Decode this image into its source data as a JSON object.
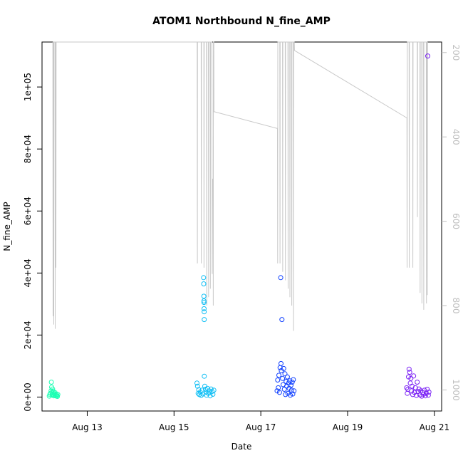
{
  "chart_data": {
    "type": "scatter",
    "title": "ATOM1 Northbound N_fine_AMP",
    "xlabel": "Date",
    "ylabel": "N_fine_AMP",
    "y2label": "",
    "x_ticks": [
      "Aug 13",
      "Aug 15",
      "Aug 17",
      "Aug 19",
      "Aug 21"
    ],
    "y_ticks": [
      "0e+00",
      "2e+04",
      "4e+04",
      "6e+04",
      "8e+04",
      "1e+05"
    ],
    "y2_ticks": [
      "200",
      "400",
      "600",
      "800",
      "1000"
    ],
    "x_range": [
      "2016-08-11 23:00",
      "2016-08-21 04:00"
    ],
    "y_range": [
      -4500,
      114500
    ],
    "y2_range_reversed": [
      1050,
      175
    ],
    "grid": false,
    "legend": "none",
    "colors": {
      "depth_line": "#c8c8c8",
      "right_axis": "#bfbfbf",
      "cluster_1": "#1effb4",
      "cluster_2": "#10bff5",
      "cluster_3": "#1040ff",
      "cluster_4": "#7a20f5"
    },
    "series": [
      {
        "role": "depth",
        "axis": "right",
        "points": [
          [
            "2016-08-12 05:00",
            175
          ],
          [
            "2016-08-12 05:06",
            825
          ],
          [
            "2016-08-12 05:12",
            175
          ],
          [
            "2016-08-12 05:24",
            175
          ],
          [
            "2016-08-12 05:30",
            845
          ],
          [
            "2016-08-12 05:36",
            175
          ],
          [
            "2016-08-12 06:12",
            175
          ],
          [
            "2016-08-12 06:18",
            855
          ],
          [
            "2016-08-12 06:24",
            175
          ],
          [
            "2016-08-12 06:36",
            175
          ],
          [
            "2016-08-12 06:42",
            710
          ],
          [
            "2016-08-12 06:48",
            175
          ],
          [
            "2016-08-15 12:48",
            175
          ],
          [
            "2016-08-15 12:54",
            700
          ],
          [
            "2016-08-15 13:00",
            175
          ],
          [
            "2016-08-15 15:00",
            175
          ],
          [
            "2016-08-15 15:06",
            700
          ],
          [
            "2016-08-15 15:12",
            175
          ],
          [
            "2016-08-15 16:30",
            175
          ],
          [
            "2016-08-15 16:36",
            710
          ],
          [
            "2016-08-15 16:42",
            175
          ],
          [
            "2016-08-15 18:00",
            175
          ],
          [
            "2016-08-15 18:06",
            800
          ],
          [
            "2016-08-15 18:12",
            175
          ],
          [
            "2016-08-15 19:00",
            175
          ],
          [
            "2016-08-15 19:06",
            780
          ],
          [
            "2016-08-15 19:12",
            175
          ],
          [
            "2016-08-15 20:00",
            175
          ],
          [
            "2016-08-15 20:06",
            760
          ],
          [
            "2016-08-15 20:12",
            175
          ],
          [
            "2016-08-15 21:00",
            175
          ],
          [
            "2016-08-15 21:06",
            725
          ],
          [
            "2016-08-15 21:12",
            500
          ],
          [
            "2016-08-15 21:36",
            500
          ],
          [
            "2016-08-15 21:42",
            800
          ],
          [
            "2016-08-15 21:48",
            175
          ],
          [
            "2016-08-15 22:00",
            175
          ],
          [
            "2016-08-15 22:06",
            340
          ],
          [
            "2016-08-17 09:12",
            380
          ],
          [
            "2016-08-17 09:18",
            700
          ],
          [
            "2016-08-17 09:24",
            175
          ],
          [
            "2016-08-17 10:30",
            175
          ],
          [
            "2016-08-17 10:36",
            700
          ],
          [
            "2016-08-17 10:42",
            175
          ],
          [
            "2016-08-17 12:00",
            175
          ],
          [
            "2016-08-17 12:06",
            720
          ],
          [
            "2016-08-17 12:12",
            175
          ],
          [
            "2016-08-17 13:30",
            175
          ],
          [
            "2016-08-17 13:36",
            740
          ],
          [
            "2016-08-17 13:42",
            175
          ],
          [
            "2016-08-17 15:00",
            175
          ],
          [
            "2016-08-17 15:06",
            760
          ],
          [
            "2016-08-17 15:12",
            175
          ],
          [
            "2016-08-17 16:00",
            175
          ],
          [
            "2016-08-17 16:06",
            780
          ],
          [
            "2016-08-17 16:12",
            175
          ],
          [
            "2016-08-17 17:00",
            175
          ],
          [
            "2016-08-17 17:06",
            800
          ],
          [
            "2016-08-17 17:12",
            175
          ],
          [
            "2016-08-17 18:00",
            175
          ],
          [
            "2016-08-17 18:06",
            860
          ],
          [
            "2016-08-17 18:12",
            175
          ],
          [
            "2016-08-17 18:30",
            175
          ],
          [
            "2016-08-17 18:36",
            195
          ],
          [
            "2016-08-20 08:48",
            355
          ],
          [
            "2016-08-20 08:54",
            710
          ],
          [
            "2016-08-20 09:00",
            175
          ],
          [
            "2016-08-20 10:00",
            175
          ],
          [
            "2016-08-20 10:06",
            710
          ],
          [
            "2016-08-20 10:12",
            175
          ],
          [
            "2016-08-20 12:00",
            175
          ],
          [
            "2016-08-20 12:06",
            710
          ],
          [
            "2016-08-20 12:12",
            175
          ],
          [
            "2016-08-20 14:30",
            175
          ],
          [
            "2016-08-20 14:36",
            590
          ],
          [
            "2016-08-20 14:42",
            175
          ],
          [
            "2016-08-20 16:00",
            175
          ],
          [
            "2016-08-20 16:06",
            770
          ],
          [
            "2016-08-20 16:12",
            175
          ],
          [
            "2016-08-20 17:00",
            175
          ],
          [
            "2016-08-20 17:06",
            795
          ],
          [
            "2016-08-20 17:12",
            175
          ],
          [
            "2016-08-20 18:00",
            175
          ],
          [
            "2016-08-20 18:06",
            810
          ],
          [
            "2016-08-20 18:12",
            175
          ],
          [
            "2016-08-20 19:30",
            175
          ],
          [
            "2016-08-20 19:36",
            795
          ],
          [
            "2016-08-20 19:42",
            175
          ],
          [
            "2016-08-20 20:00",
            175
          ],
          [
            "2016-08-20 20:06",
            775
          ],
          [
            "2016-08-20 20:12",
            175
          ]
        ]
      },
      {
        "role": "points",
        "color": "#1effb4",
        "points": [
          [
            "2016-08-12 03:00",
            300
          ],
          [
            "2016-08-12 03:20",
            800
          ],
          [
            "2016-08-12 03:40",
            1200
          ],
          [
            "2016-08-12 04:00",
            2000
          ],
          [
            "2016-08-12 04:10",
            4800
          ],
          [
            "2016-08-12 04:20",
            3200
          ],
          [
            "2016-08-12 04:30",
            1500
          ],
          [
            "2016-08-12 04:40",
            600
          ],
          [
            "2016-08-12 04:50",
            2600
          ],
          [
            "2016-08-12 05:00",
            900
          ],
          [
            "2016-08-12 05:15",
            1800
          ],
          [
            "2016-08-12 05:30",
            400
          ],
          [
            "2016-08-12 05:45",
            1100
          ],
          [
            "2016-08-12 06:00",
            700
          ],
          [
            "2016-08-12 06:15",
            1400
          ],
          [
            "2016-08-12 06:30",
            500
          ],
          [
            "2016-08-12 06:45",
            900
          ],
          [
            "2016-08-12 07:00",
            300
          ],
          [
            "2016-08-12 07:15",
            600
          ],
          [
            "2016-08-12 07:30",
            200
          ],
          [
            "2016-08-12 07:45",
            800
          ]
        ]
      },
      {
        "role": "points",
        "color": "#10bff5",
        "points": [
          [
            "2016-08-15 12:40",
            4500
          ],
          [
            "2016-08-15 13:00",
            3500
          ],
          [
            "2016-08-15 13:20",
            1200
          ],
          [
            "2016-08-15 13:40",
            2400
          ],
          [
            "2016-08-15 14:00",
            800
          ],
          [
            "2016-08-15 14:30",
            1600
          ],
          [
            "2016-08-15 15:00",
            500
          ],
          [
            "2016-08-15 15:30",
            2200
          ],
          [
            "2016-08-15 16:00",
            1000
          ],
          [
            "2016-08-15 16:20",
            38500
          ],
          [
            "2016-08-15 16:25",
            36500
          ],
          [
            "2016-08-15 16:30",
            32500
          ],
          [
            "2016-08-15 16:32",
            31000
          ],
          [
            "2016-08-15 16:35",
            30500
          ],
          [
            "2016-08-15 16:38",
            28500
          ],
          [
            "2016-08-15 16:40",
            27500
          ],
          [
            "2016-08-15 16:42",
            25000
          ],
          [
            "2016-08-15 16:45",
            6700
          ],
          [
            "2016-08-15 17:00",
            3500
          ],
          [
            "2016-08-15 17:20",
            2500
          ],
          [
            "2016-08-15 17:40",
            1500
          ],
          [
            "2016-08-15 18:00",
            600
          ],
          [
            "2016-08-15 18:30",
            2800
          ],
          [
            "2016-08-15 19:00",
            1200
          ],
          [
            "2016-08-15 19:30",
            2000
          ],
          [
            "2016-08-15 20:00",
            400
          ],
          [
            "2016-08-15 20:30",
            2600
          ],
          [
            "2016-08-15 21:00",
            1800
          ],
          [
            "2016-08-15 21:30",
            900
          ],
          [
            "2016-08-15 22:00",
            2200
          ]
        ]
      },
      {
        "role": "points",
        "color": "#1040ff",
        "points": [
          [
            "2016-08-17 09:00",
            2000
          ],
          [
            "2016-08-17 09:20",
            5500
          ],
          [
            "2016-08-17 09:40",
            3000
          ],
          [
            "2016-08-17 10:00",
            7000
          ],
          [
            "2016-08-17 10:20",
            1500
          ],
          [
            "2016-08-17 10:40",
            9500
          ],
          [
            "2016-08-17 11:00",
            38500
          ],
          [
            "2016-08-17 11:10",
            10800
          ],
          [
            "2016-08-17 11:20",
            8500
          ],
          [
            "2016-08-17 11:40",
            25000
          ],
          [
            "2016-08-17 12:00",
            6000
          ],
          [
            "2016-08-17 12:20",
            4000
          ],
          [
            "2016-08-17 12:40",
            9200
          ],
          [
            "2016-08-17 13:00",
            2500
          ],
          [
            "2016-08-17 13:20",
            7500
          ],
          [
            "2016-08-17 13:40",
            800
          ],
          [
            "2016-08-17 14:00",
            5000
          ],
          [
            "2016-08-17 14:20",
            3500
          ],
          [
            "2016-08-17 14:40",
            6500
          ],
          [
            "2016-08-17 15:00",
            1200
          ],
          [
            "2016-08-17 15:20",
            4500
          ],
          [
            "2016-08-17 15:40",
            2800
          ],
          [
            "2016-08-17 16:00",
            5200
          ],
          [
            "2016-08-17 16:20",
            600
          ],
          [
            "2016-08-17 16:40",
            3800
          ],
          [
            "2016-08-17 17:00",
            2200
          ],
          [
            "2016-08-17 17:20",
            4800
          ],
          [
            "2016-08-17 17:40",
            1000
          ],
          [
            "2016-08-17 18:00",
            5600
          ],
          [
            "2016-08-17 18:20",
            2000
          ]
        ]
      },
      {
        "role": "points",
        "color": "#7a20f5",
        "points": [
          [
            "2016-08-20 08:40",
            3000
          ],
          [
            "2016-08-20 09:00",
            1200
          ],
          [
            "2016-08-20 09:20",
            2500
          ],
          [
            "2016-08-20 09:40",
            6500
          ],
          [
            "2016-08-20 10:00",
            9000
          ],
          [
            "2016-08-20 10:20",
            8000
          ],
          [
            "2016-08-20 10:40",
            4500
          ],
          [
            "2016-08-20 11:00",
            6000
          ],
          [
            "2016-08-20 11:20",
            2000
          ],
          [
            "2016-08-20 11:40",
            3500
          ],
          [
            "2016-08-20 12:00",
            800
          ],
          [
            "2016-08-20 12:30",
            6800
          ],
          [
            "2016-08-20 13:00",
            1500
          ],
          [
            "2016-08-20 13:30",
            3000
          ],
          [
            "2016-08-20 14:00",
            500
          ],
          [
            "2016-08-20 14:30",
            4800
          ],
          [
            "2016-08-20 15:00",
            1800
          ],
          [
            "2016-08-20 15:30",
            2600
          ],
          [
            "2016-08-20 16:00",
            700
          ],
          [
            "2016-08-20 16:30",
            2000
          ],
          [
            "2016-08-20 17:00",
            300
          ],
          [
            "2016-08-20 17:30",
            1500
          ],
          [
            "2016-08-20 18:00",
            900
          ],
          [
            "2016-08-20 18:30",
            2200
          ],
          [
            "2016-08-20 19:00",
            400
          ],
          [
            "2016-08-20 19:30",
            1200
          ],
          [
            "2016-08-20 20:00",
            2500
          ],
          [
            "2016-08-20 20:20",
            110000
          ],
          [
            "2016-08-20 20:40",
            600
          ],
          [
            "2016-08-20 21:00",
            1600
          ]
        ]
      }
    ]
  }
}
